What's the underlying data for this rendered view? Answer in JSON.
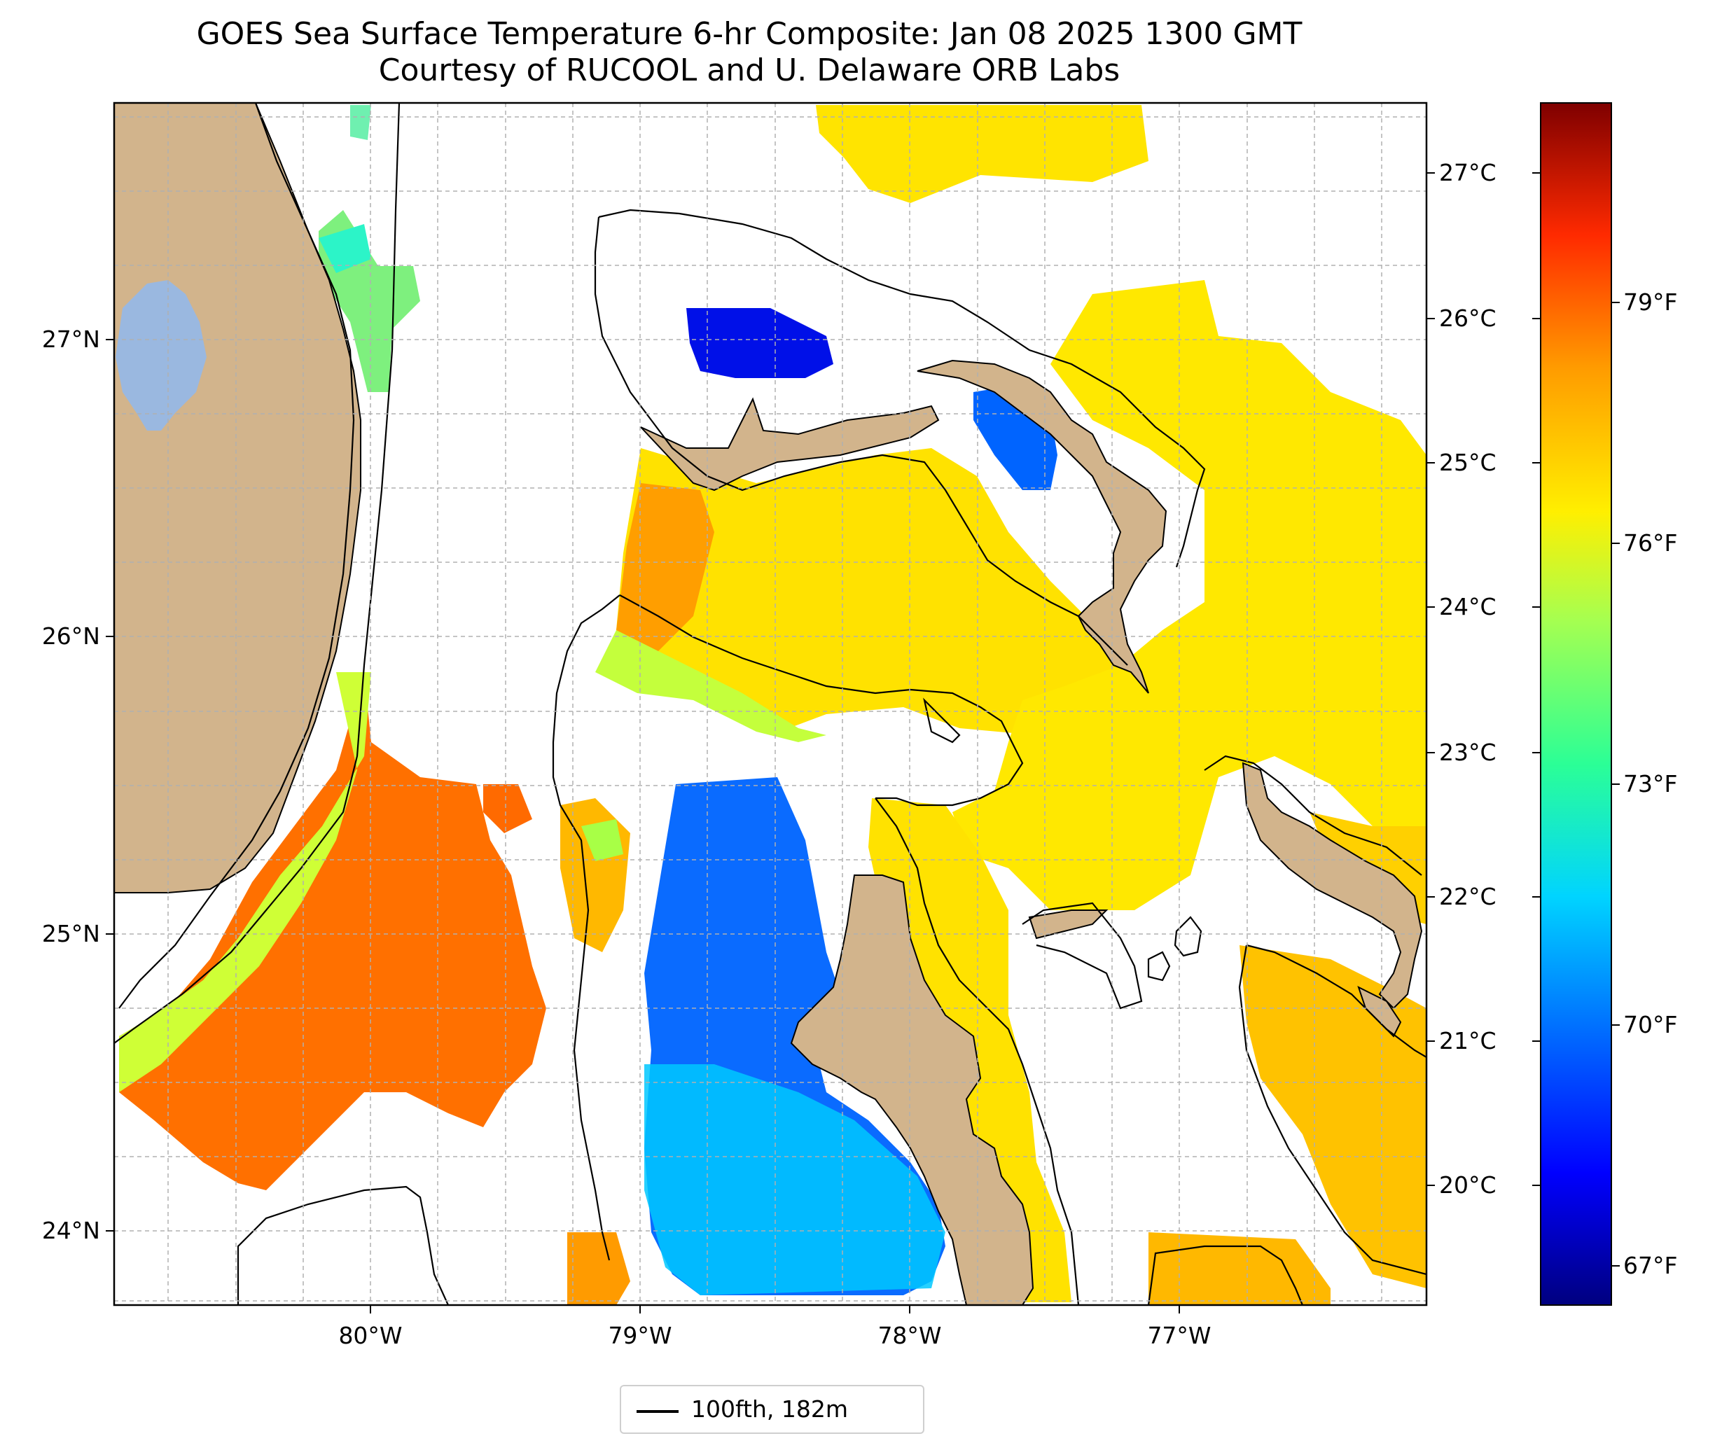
{
  "title": {
    "line1": "GOES Sea Surface Temperature 6-hr Composite: Jan 08 2025 1300 GMT",
    "line2": "Courtesy of RUCOOL and U. Delaware ORB Labs"
  },
  "lon_ticks": [
    "80°W",
    "79°W",
    "78°W",
    "77°W"
  ],
  "lat_ticks": [
    "27°N",
    "26°N",
    "25°N",
    "24°N"
  ],
  "colorbar": {
    "celsius_ticks": [
      "27°C",
      "26°C",
      "25°C",
      "24°C",
      "23°C",
      "22°C",
      "21°C",
      "20°C"
    ],
    "fahrenheit_ticks": [
      "79°F",
      "76°F",
      "73°F",
      "70°F",
      "67°F"
    ],
    "colormap": "jet",
    "colors": [
      "#00007f",
      "#0000ff",
      "#007fff",
      "#00e5ff",
      "#2bff96",
      "#9aff5a",
      "#ffef00",
      "#ff9b00",
      "#ff3000",
      "#7f0000"
    ]
  },
  "legend": {
    "label": "100fth, 182m",
    "line_color": "#000000"
  },
  "colors": {
    "land": "#d2b48c",
    "lake": "#9ab8e0",
    "gridline": "#b0b0b0"
  }
}
